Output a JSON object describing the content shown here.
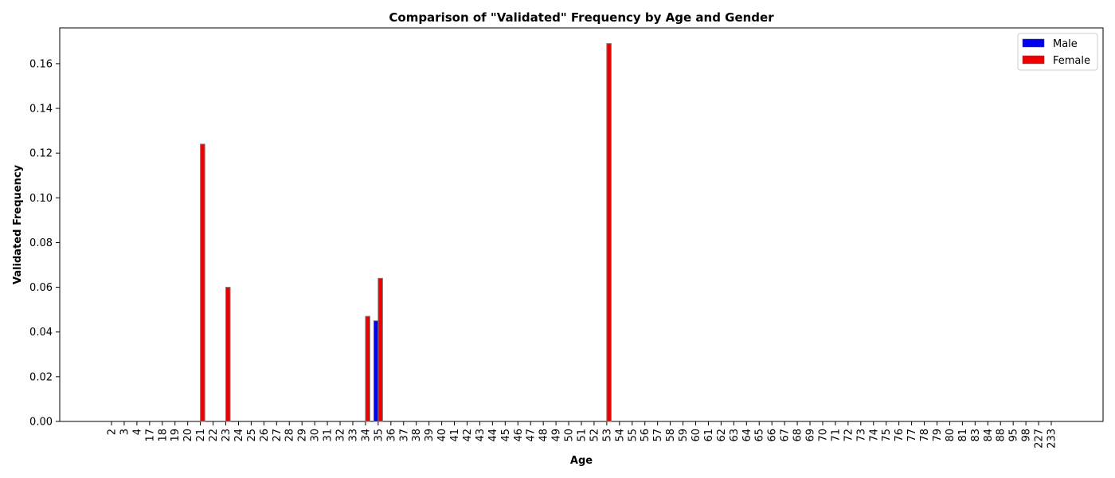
{
  "chart_data": {
    "type": "bar",
    "title": "Comparison of \"Validated\" Frequency by Age and Gender",
    "xlabel": "Age",
    "ylabel": "Validated Frequency",
    "ylim": [
      0,
      0.176
    ],
    "yticks": [
      0.0,
      0.02,
      0.04,
      0.06,
      0.08,
      0.1,
      0.12,
      0.14,
      0.16
    ],
    "grid": false,
    "legend_position": "top-right",
    "categories": [
      "2",
      "3",
      "4",
      "17",
      "18",
      "19",
      "20",
      "21",
      "22",
      "23",
      "24",
      "25",
      "26",
      "27",
      "28",
      "29",
      "30",
      "31",
      "32",
      "33",
      "34",
      "35",
      "36",
      "37",
      "38",
      "39",
      "40",
      "41",
      "42",
      "43",
      "44",
      "45",
      "46",
      "47",
      "48",
      "49",
      "50",
      "51",
      "52",
      "53",
      "54",
      "55",
      "56",
      "57",
      "58",
      "59",
      "60",
      "61",
      "62",
      "63",
      "64",
      "65",
      "66",
      "67",
      "68",
      "69",
      "70",
      "71",
      "72",
      "73",
      "74",
      "75",
      "76",
      "77",
      "78",
      "79",
      "80",
      "81",
      "83",
      "84",
      "88",
      "95",
      "98",
      "227",
      "233"
    ],
    "series": [
      {
        "name": "Male",
        "color": "#0000ee",
        "values": [
          0,
          0,
          0,
          0,
          0,
          0,
          0,
          0,
          0,
          0,
          0,
          0,
          0,
          0,
          0,
          0,
          0,
          0,
          0,
          0,
          0,
          0.045,
          0,
          0,
          0,
          0,
          0,
          0,
          0,
          0,
          0,
          0,
          0,
          0,
          0,
          0,
          0,
          0,
          0,
          0,
          0,
          0,
          0,
          0,
          0,
          0,
          0,
          0,
          0,
          0,
          0,
          0,
          0,
          0,
          0,
          0,
          0,
          0,
          0,
          0,
          0,
          0,
          0,
          0,
          0,
          0,
          0,
          0,
          0,
          0,
          0,
          0,
          0,
          0,
          0
        ]
      },
      {
        "name": "Female",
        "color": "#ee0000",
        "values": [
          0,
          0,
          0,
          0,
          0,
          0,
          0,
          0.124,
          0,
          0.06,
          0,
          0,
          0,
          0,
          0,
          0,
          0,
          0,
          0,
          0,
          0.047,
          0.064,
          0,
          0,
          0,
          0,
          0,
          0,
          0,
          0,
          0,
          0,
          0,
          0,
          0,
          0,
          0,
          0,
          0,
          0.169,
          0,
          0,
          0,
          0,
          0,
          0,
          0,
          0,
          0,
          0,
          0,
          0,
          0,
          0,
          0,
          0,
          0,
          0,
          0,
          0,
          0,
          0,
          0,
          0,
          0,
          0,
          0,
          0,
          0,
          0,
          0,
          0,
          0,
          0,
          0
        ]
      }
    ]
  }
}
